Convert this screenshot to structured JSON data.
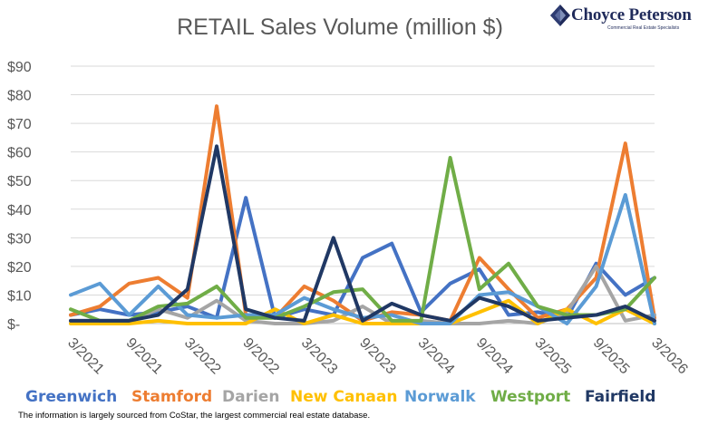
{
  "logo": {
    "name": "Choyce Peterson",
    "tagline": "Commercial Real Estate Specialists",
    "colors": {
      "dark": "#1f2a5a",
      "light": "#7f8fb8"
    }
  },
  "footnote": "The information is largely sourced from CoStar, the largest commercial real estate database.",
  "chart_data": {
    "type": "line",
    "title": "RETAIL Sales Volume (million $)",
    "xlabel": "",
    "ylabel": "",
    "ylim": [
      0,
      90
    ],
    "yticks": [
      "$-",
      "$10",
      "$20",
      "$30",
      "$40",
      "$50",
      "$60",
      "$70",
      "$80",
      "$90"
    ],
    "grid": "horizontal",
    "legend_position": "bottom",
    "x": [
      "3/2021",
      "6/2021",
      "9/2021",
      "12/2021",
      "3/2022",
      "6/2022",
      "9/2022",
      "12/2022",
      "3/2023",
      "6/2023",
      "9/2023",
      "12/2023",
      "3/2024",
      "6/2024",
      "9/2024",
      "12/2024",
      "3/2025",
      "6/2025",
      "9/2025",
      "12/2025",
      "3/2026"
    ],
    "xtick_labels": [
      "3/2021",
      "9/2021",
      "3/2022",
      "9/2022",
      "3/2023",
      "9/2023",
      "3/2024",
      "9/2024",
      "3/2025",
      "9/2025",
      "3/2026"
    ],
    "series": [
      {
        "name": "Greenwich",
        "color": "#4472c4",
        "values": [
          3,
          5,
          3,
          4,
          6,
          2,
          44,
          2,
          5,
          3,
          23,
          28,
          4,
          14,
          19,
          3,
          4,
          2,
          21,
          10,
          16
        ]
      },
      {
        "name": "Stamford",
        "color": "#ed7d31",
        "values": [
          3,
          6,
          14,
          16,
          9,
          76,
          3,
          2,
          13,
          8,
          1,
          4,
          3,
          1,
          23,
          12,
          2,
          5,
          16,
          63,
          2
        ]
      },
      {
        "name": "Darien",
        "color": "#a5a5a5",
        "values": [
          1,
          1,
          1,
          5,
          2,
          8,
          1,
          0,
          0,
          1,
          6,
          0,
          1,
          0,
          0,
          1,
          0,
          4,
          20,
          1,
          3
        ]
      },
      {
        "name": "New Canaan",
        "color": "#ffc000",
        "values": [
          0,
          0,
          0,
          1,
          0,
          0,
          0,
          5,
          0,
          3,
          0,
          0,
          0,
          0,
          4,
          8,
          0,
          5,
          0,
          5,
          0
        ]
      },
      {
        "name": "Norwalk",
        "color": "#5b9bd5",
        "values": [
          10,
          14,
          3,
          13,
          3,
          2,
          3,
          3,
          9,
          5,
          2,
          3,
          0,
          0,
          10,
          11,
          6,
          0,
          13,
          45,
          0
        ]
      },
      {
        "name": "Westport",
        "color": "#70ad47",
        "values": [
          5,
          1,
          1,
          6,
          7,
          13,
          2,
          2,
          6,
          11,
          12,
          1,
          1,
          58,
          12,
          21,
          6,
          3,
          3,
          5,
          16
        ]
      },
      {
        "name": "Fairfield",
        "color": "#203864",
        "values": [
          1,
          1,
          1,
          3,
          12,
          62,
          5,
          2,
          1,
          30,
          1,
          7,
          3,
          1,
          9,
          6,
          1,
          2,
          3,
          6,
          1
        ]
      }
    ]
  }
}
